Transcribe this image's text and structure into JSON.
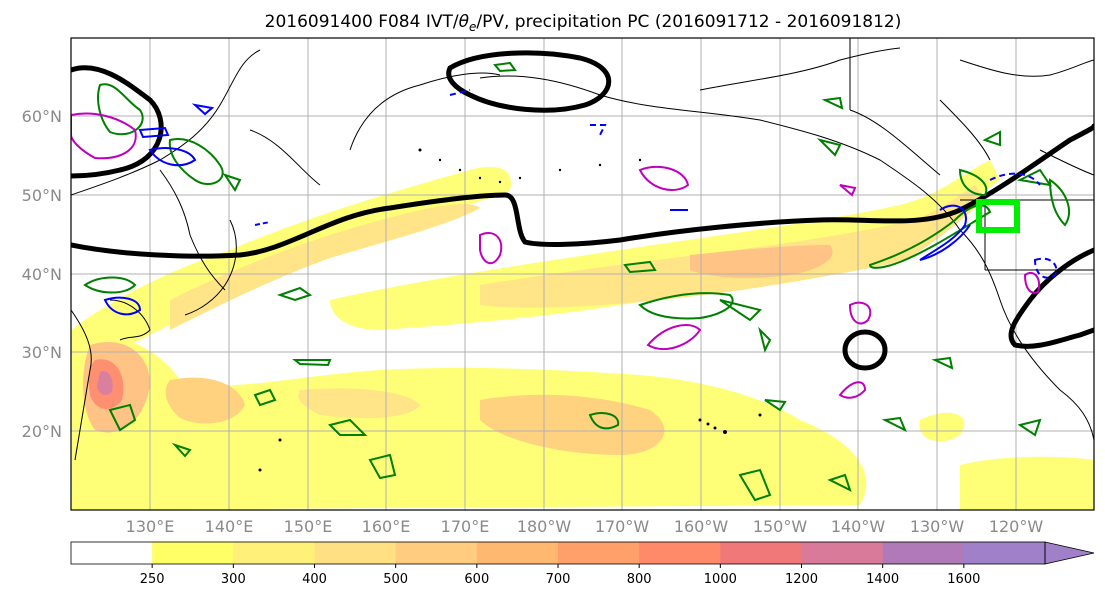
{
  "figure": {
    "title_prefix": "2016091400 F084 IVT/",
    "title_theta": "θ",
    "title_sub": "e",
    "title_suffix": "/PV, precipitation PC (2016091712 - 2016091812)"
  },
  "map": {
    "lat_labels": [
      "60°N",
      "50°N",
      "40°N",
      "30°N",
      "20°N"
    ],
    "lon_labels": [
      "130°E",
      "140°E",
      "150°E",
      "160°E",
      "170°E",
      "180°W",
      "170°W",
      "160°W",
      "150°W",
      "140°W",
      "130°W",
      "120°W"
    ],
    "colors": {
      "theta_e": "#000000",
      "pv": "#0000ff",
      "precip_pc": "#008000",
      "pv_alt": "#c000c0",
      "target_box": "#00ee00",
      "grid": "#b0b0b0"
    }
  },
  "colorbar": {
    "levels": [
      "250",
      "300",
      "400",
      "500",
      "600",
      "700",
      "800",
      "1000",
      "1200",
      "1400",
      "1600"
    ],
    "colors": [
      "#ffffff",
      "#ffff66",
      "#fff07a",
      "#ffe082",
      "#ffcc80",
      "#ffb870",
      "#ff9f6a",
      "#ff8a6a",
      "#f07878",
      "#d97a9a",
      "#b07ab8",
      "#a080c8"
    ]
  }
}
